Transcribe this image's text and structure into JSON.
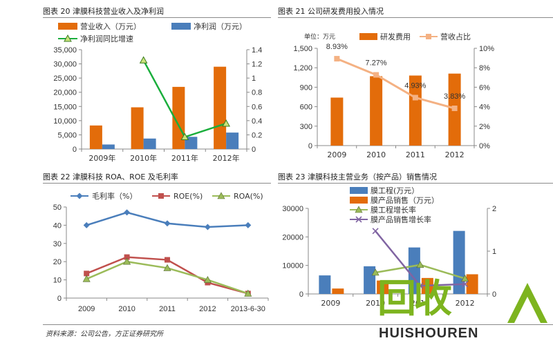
{
  "source_note": "资料来源：公司公告，方正证券研究所",
  "watermark": {
    "cn": "回收",
    "en": "HUISHOUREN",
    "color": "#7db41f"
  },
  "colors": {
    "orange": "#e36c0a",
    "blue": "#4a7ebb",
    "green": "#1aae3c",
    "salmon": "#f4b183",
    "red": "#c0504d",
    "lightgreen": "#9bbb59",
    "purple": "#8064a2"
  },
  "chart_data": [
    {
      "id": "fig20",
      "type": "bar",
      "title": "图表 20 津膜科技营业收入及净利润",
      "categories": [
        "2009年",
        "2010年",
        "2011年",
        "2012年"
      ],
      "series": [
        {
          "name": "营业收入（万元）",
          "kind": "bar",
          "axis": "left",
          "values": [
            8300,
            14700,
            21900,
            29000
          ],
          "color": "#e36c0a"
        },
        {
          "name": "净利润（万元）",
          "kind": "bar",
          "axis": "left",
          "values": [
            1600,
            3700,
            4300,
            5800
          ],
          "color": "#4a7ebb"
        },
        {
          "name": "净利润同比增速",
          "kind": "line",
          "axis": "right",
          "values": [
            null,
            1.25,
            0.17,
            0.36
          ],
          "color": "#1aae3c"
        }
      ],
      "y_left": {
        "ylim": [
          0,
          35000
        ],
        "ticks": [
          "0",
          "5,000",
          "10,000",
          "15,000",
          "20,000",
          "25,000",
          "30,000",
          "35,000"
        ]
      },
      "y_right": {
        "ylim": [
          0,
          1.4
        ],
        "ticks": [
          "0",
          "0.2",
          "0.4",
          "0.6",
          "0.8",
          "1",
          "1.2",
          "1.4"
        ]
      },
      "legend": "top"
    },
    {
      "id": "fig21",
      "type": "bar",
      "title": "图表 21 公司研发费用投入情况",
      "unit_label": "单位：万元",
      "categories": [
        "2009",
        "2010",
        "2011",
        "2012"
      ],
      "series": [
        {
          "name": "研发费用",
          "kind": "bar",
          "axis": "left",
          "values": [
            740,
            1070,
            1080,
            1110
          ],
          "color": "#e36c0a"
        },
        {
          "name": "营收占比",
          "kind": "line",
          "axis": "right",
          "values": [
            8.93,
            7.27,
            4.93,
            3.83
          ],
          "color": "#f4b183"
        }
      ],
      "data_labels": [
        "8.93%",
        "7.27%",
        "4.93%",
        "3.83%"
      ],
      "y_left": {
        "ylim": [
          0,
          1500
        ],
        "ticks": [
          "0",
          "300",
          "600",
          "900",
          "1,200",
          "1,500"
        ]
      },
      "y_right": {
        "ylim": [
          0,
          10
        ],
        "ticks": [
          "0%",
          "2%",
          "4%",
          "6%",
          "8%",
          "10%"
        ]
      },
      "legend": "top"
    },
    {
      "id": "fig22",
      "type": "line",
      "title": "图表 22 津膜科技 ROA、ROE 及毛利率",
      "categories": [
        "2009",
        "2010",
        "2011",
        "2012",
        "2013-6-30"
      ],
      "series": [
        {
          "name": "毛利率（%）",
          "values": [
            40,
            47,
            41,
            39,
            40
          ],
          "color": "#4a7ebb",
          "marker": "diamond"
        },
        {
          "name": "ROE(%)",
          "values": [
            13.5,
            22.5,
            21,
            8.5,
            2.5
          ],
          "color": "#c0504d",
          "marker": "square"
        },
        {
          "name": "ROA(%)",
          "values": [
            10.5,
            20,
            16.5,
            10,
            2.5
          ],
          "color": "#9bbb59",
          "marker": "triangle"
        }
      ],
      "y_left": {
        "ylim": [
          0,
          50
        ],
        "ticks": [
          "0",
          "10",
          "20",
          "30",
          "40",
          "50"
        ]
      },
      "legend": "top"
    },
    {
      "id": "fig23",
      "type": "bar",
      "title": "图表 23 津膜科技主营业务（按产品）销售情况",
      "categories": [
        "2009",
        "2010",
        "2011",
        "2012"
      ],
      "series": [
        {
          "name": "膜工程(万元）",
          "kind": "bar",
          "axis": "left",
          "values": [
            6500,
            9700,
            16300,
            22100
          ],
          "color": "#4a7ebb"
        },
        {
          "name": "膜产品销售（万元）",
          "kind": "bar",
          "axis": "left",
          "values": [
            1900,
            4700,
            5600,
            6900
          ],
          "color": "#e36c0a"
        },
        {
          "name": "膜工程增长率",
          "kind": "line",
          "axis": "right",
          "values": [
            null,
            0.5,
            0.68,
            0.36
          ],
          "color": "#9bbb59"
        },
        {
          "name": "膜产品销售增长率",
          "kind": "line",
          "axis": "right",
          "values": [
            null,
            1.47,
            0.19,
            0.23
          ],
          "color": "#8064a2"
        }
      ],
      "y_left": {
        "ylim": [
          0,
          30000
        ],
        "ticks": [
          "0",
          "10000",
          "20000",
          "30000"
        ]
      },
      "y_right": {
        "ylim": [
          0,
          2
        ],
        "ticks": [
          "0",
          "1",
          "2"
        ]
      },
      "legend": "top-left"
    }
  ]
}
